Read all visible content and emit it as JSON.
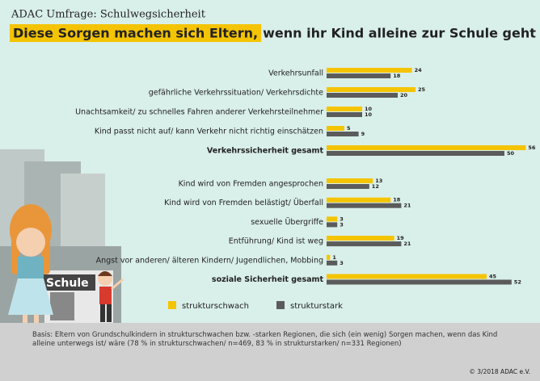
{
  "chart_data": {
    "type": "bar",
    "orientation": "horizontal",
    "subtitle": "ADAC Umfrage: Schulwegsicherheit",
    "title_parts": [
      "Diese Sorgen machen sich Eltern,",
      "wenn ihr Kind alleine zur Schule geht"
    ],
    "categories": [
      "Verkehrsunfall",
      "gefährliche Verkehrssituation/ Verkehrsdichte",
      "Unachtsamkeit/ zu schnelles Fahren anderer Verkehrsteilnehmer",
      "Kind passt nicht auf/ kann Verkehr nicht richtig einschätzen",
      "Verkehrssicherheit gesamt",
      "Kind wird von Fremden angesprochen",
      "Kind wird von Fremden belästigt/ Überfall",
      "sexuelle Übergriffe",
      "Entführung/ Kind ist weg",
      "Angst vor anderen/ älteren Kindern/ Jugendlichen, Mobbing",
      "soziale Sicherheit gesamt"
    ],
    "series": [
      {
        "name": "strukturschwach",
        "color": "#f5c400",
        "values": [
          24,
          25,
          10,
          5,
          56,
          13,
          18,
          3,
          19,
          1,
          45
        ]
      },
      {
        "name": "strukturstark",
        "color": "#5b5b5b",
        "values": [
          18,
          20,
          10,
          9,
          50,
          12,
          21,
          3,
          21,
          3,
          52
        ]
      }
    ],
    "illustration_sign": "Schule",
    "footnote": "Basis: Eltern von Grundschulkindern in strukturschwachen bzw. -starken Regionen, die sich (ein wenig) Sorgen machen, wenn das Kind alleine unterwegs ist/ wäre (78 % in strukturschwachen/ n=469, 83 % in strukturstarken/ n=331 Regionen)",
    "copyright": "© 3/2018  ADAC e.V."
  }
}
